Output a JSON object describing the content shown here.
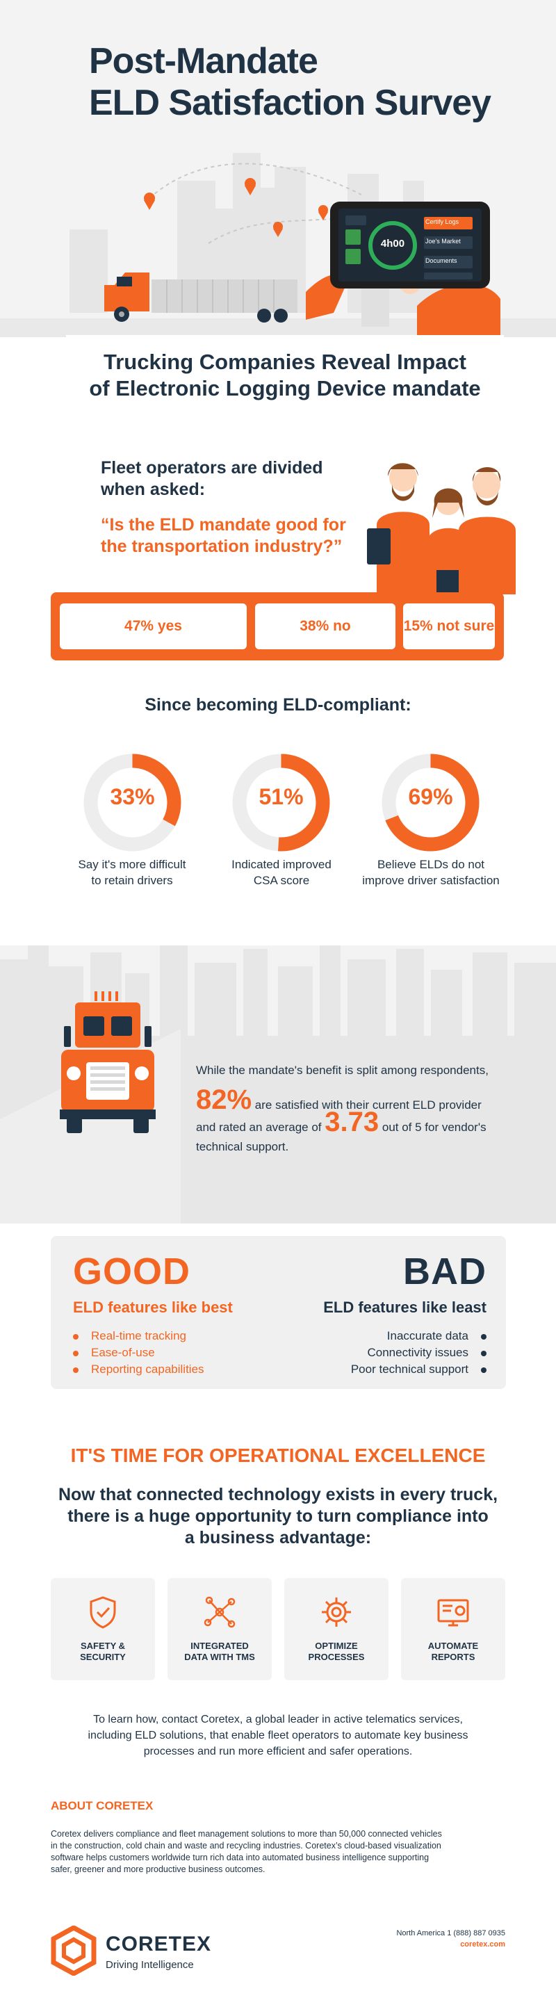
{
  "hero": {
    "title_line1": "Post-Mandate",
    "title_line2": "ELD Satisfaction Survey",
    "tablet": {
      "timer": "4h00",
      "menu_items": [
        "Certify Logs",
        "Joe's Market",
        "Documents"
      ]
    }
  },
  "subhead": {
    "line1": "Trucking Companies Reveal Impact",
    "line2": "of Electronic Logging Device mandate"
  },
  "fleet": {
    "intro_line1": "Fleet operators are divided",
    "intro_line2": "when asked:",
    "question_line1": "“Is the ELD mandate good for",
    "question_line2": "the transportation industry?”",
    "poll": [
      {
        "label": "47% yes",
        "value": 47
      },
      {
        "label": "38% no",
        "value": 38
      },
      {
        "label": "15% not sure",
        "value": 15
      }
    ]
  },
  "compliance": {
    "title": "Since becoming ELD-compliant:",
    "items": [
      {
        "value": 33,
        "value_label": "33%",
        "caption_line1": "Say it's more difficult",
        "caption_line2": "to retain drivers"
      },
      {
        "value": 51,
        "value_label": "51%",
        "caption_line1": "Indicated improved",
        "caption_line2": "CSA score"
      },
      {
        "value": 69,
        "value_label": "69%",
        "caption_line1": "Believe ELDs do not",
        "caption_line2": "improve driver satisfaction"
      }
    ]
  },
  "stats": {
    "line1": "While the mandate's benefit is split among respondents,",
    "pct": "82%",
    "line2": "are satisfied with their current ELD provider",
    "line3_pre": "and rated an average of",
    "rating": "3.73",
    "line3_post": "out of 5 for vendor's",
    "line4": "technical support."
  },
  "good_bad": {
    "good_title": "GOOD",
    "good_sub": "ELD features like best",
    "good_items": [
      "Real-time tracking",
      "Ease-of-use",
      "Reporting capabilities"
    ],
    "bad_title": "BAD",
    "bad_sub": "ELD features like least",
    "bad_items": [
      "Inaccurate data",
      "Connectivity issues",
      "Poor technical support"
    ]
  },
  "operational": {
    "title": "IT'S TIME FOR OPERATIONAL EXCELLENCE",
    "body_line1": "Now that connected technology exists in every truck,",
    "body_line2": "there is a huge opportunity to turn compliance into",
    "body_line3": "a business advantage:",
    "tiles": [
      {
        "line1": "SAFETY &",
        "line2": "SECURITY",
        "icon": "shield-check-icon"
      },
      {
        "line1": "INTEGRATED",
        "line2": "DATA WITH TMS",
        "icon": "network-nodes-icon"
      },
      {
        "line1": "OPTIMIZE",
        "line2": "PROCESSES",
        "icon": "gear-icon"
      },
      {
        "line1": "AUTOMATE",
        "line2": "REPORTS",
        "icon": "report-screen-icon"
      }
    ]
  },
  "contact": {
    "line1": "To learn how, contact Coretex, a global leader in active telematics services,",
    "line2": "including ELD solutions, that enable fleet operators to automate key business",
    "line3": "processes and run more efficient and safer operations."
  },
  "about": {
    "title": "ABOUT CORETEX",
    "line1": "Coretex delivers compliance and fleet management solutions to more than 50,000 connected vehicles",
    "line2": "in the construction, cold chain and waste and recycling industries. Coretex’s cloud-based visualization",
    "line3": "software helps customers worldwide turn rich data into automated business intelligence supporting",
    "line4": "safer, greener and more productive business outcomes."
  },
  "footer": {
    "brand": "CORETEX",
    "tagline": "Driving Intelligence",
    "phone": "North America 1 (888) 887 0935",
    "website": "coretex.com"
  },
  "colors": {
    "accent": "#f26522",
    "navy": "#1f3345",
    "light_gray": "#f3f3f3"
  }
}
